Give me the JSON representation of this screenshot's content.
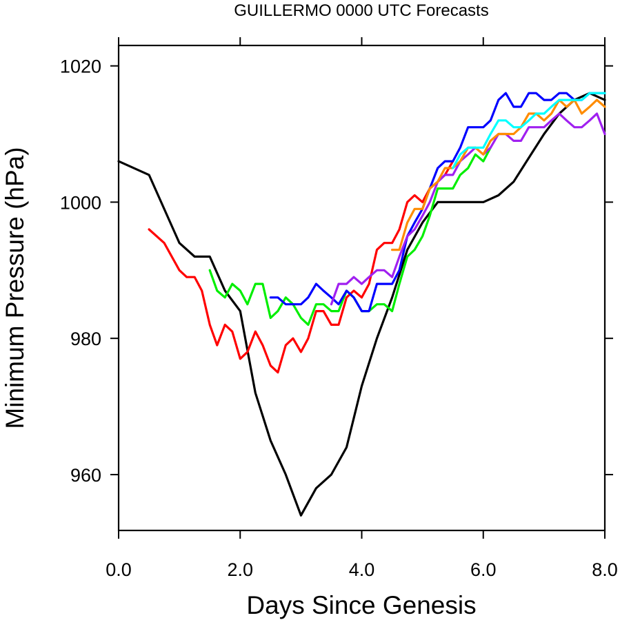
{
  "chart_data": {
    "type": "line",
    "title": "GUILLERMO 0000 UTC Forecasts",
    "xlabel": "Days Since Genesis",
    "ylabel": "Minimum Pressure (hPa)",
    "xlim": [
      0,
      8
    ],
    "ylim": [
      951.8,
      1023
    ],
    "x_ticks": [
      0,
      2,
      4,
      6,
      8
    ],
    "x_tick_labels": [
      "0.0",
      "2.0",
      "4.0",
      "6.0",
      "8.0"
    ],
    "y_ticks": [
      960,
      980,
      1000,
      1020
    ],
    "y_tick_labels": [
      "960",
      "980",
      "1000",
      "1020"
    ],
    "grid": false,
    "legend": "none",
    "series": [
      {
        "color": "#000000",
        "points": [
          [
            0,
            1006
          ],
          [
            0.5,
            1004
          ],
          [
            1,
            994
          ],
          [
            1.25,
            992
          ],
          [
            1.5,
            992
          ],
          [
            1.75,
            987
          ],
          [
            2,
            984
          ],
          [
            2.25,
            972
          ],
          [
            2.5,
            965
          ],
          [
            2.75,
            960
          ],
          [
            3,
            954
          ],
          [
            3.25,
            958
          ],
          [
            3.5,
            960
          ],
          [
            3.75,
            964
          ],
          [
            4,
            973
          ],
          [
            4.25,
            980
          ],
          [
            4.5,
            986
          ],
          [
            4.75,
            993
          ],
          [
            5,
            997
          ],
          [
            5.25,
            1000
          ],
          [
            5.5,
            1000
          ],
          [
            5.75,
            1000
          ],
          [
            6,
            1000
          ],
          [
            6.25,
            1001
          ],
          [
            6.5,
            1003
          ],
          [
            6.75,
            1006.5
          ],
          [
            7,
            1010
          ],
          [
            7.25,
            1013
          ],
          [
            7.5,
            1015
          ],
          [
            7.75,
            1016
          ],
          [
            8,
            1015
          ]
        ]
      },
      {
        "color": "#ff0000",
        "points": [
          [
            0.5,
            996
          ],
          [
            0.75,
            994
          ],
          [
            1,
            990
          ],
          [
            1.12,
            989
          ],
          [
            1.25,
            989
          ],
          [
            1.37,
            987
          ],
          [
            1.5,
            982
          ],
          [
            1.62,
            979
          ],
          [
            1.75,
            982
          ],
          [
            1.87,
            981
          ],
          [
            2,
            977
          ],
          [
            2.12,
            978
          ],
          [
            2.25,
            981
          ],
          [
            2.37,
            979
          ],
          [
            2.5,
            976
          ],
          [
            2.62,
            975
          ],
          [
            2.75,
            979
          ],
          [
            2.87,
            980
          ],
          [
            3,
            978
          ],
          [
            3.12,
            980
          ],
          [
            3.25,
            984
          ],
          [
            3.37,
            984
          ],
          [
            3.5,
            982
          ],
          [
            3.62,
            982
          ],
          [
            3.75,
            986
          ],
          [
            3.87,
            987
          ],
          [
            4,
            986
          ],
          [
            4.12,
            988
          ],
          [
            4.25,
            993
          ],
          [
            4.37,
            994
          ],
          [
            4.5,
            994
          ],
          [
            4.62,
            996
          ],
          [
            4.75,
            1000
          ],
          [
            4.87,
            1001
          ],
          [
            5,
            1000
          ],
          [
            5.12,
            1002
          ],
          [
            5.25,
            1003
          ],
          [
            5.37,
            1004
          ],
          [
            5.5,
            1006
          ]
        ]
      },
      {
        "color": "#00ee00",
        "points": [
          [
            1.5,
            990
          ],
          [
            1.62,
            987
          ],
          [
            1.75,
            986
          ],
          [
            1.87,
            988
          ],
          [
            2,
            987
          ],
          [
            2.12,
            985
          ],
          [
            2.25,
            988
          ],
          [
            2.37,
            988
          ],
          [
            2.5,
            983
          ],
          [
            2.62,
            984
          ],
          [
            2.75,
            986
          ],
          [
            2.87,
            985
          ],
          [
            3,
            983
          ],
          [
            3.12,
            982
          ],
          [
            3.25,
            985
          ],
          [
            3.37,
            985
          ],
          [
            3.5,
            984
          ],
          [
            3.62,
            984
          ],
          [
            3.75,
            987
          ],
          [
            3.87,
            986
          ],
          [
            4,
            984
          ],
          [
            4.12,
            984
          ],
          [
            4.25,
            985
          ],
          [
            4.37,
            985
          ],
          [
            4.5,
            984
          ],
          [
            4.62,
            988
          ],
          [
            4.75,
            992
          ],
          [
            4.87,
            993
          ],
          [
            5,
            995
          ],
          [
            5.12,
            998
          ],
          [
            5.25,
            1002
          ],
          [
            5.37,
            1002
          ],
          [
            5.5,
            1002
          ],
          [
            5.62,
            1004
          ],
          [
            5.75,
            1005
          ],
          [
            5.87,
            1007
          ],
          [
            6,
            1006
          ],
          [
            6.12,
            1008
          ]
        ]
      },
      {
        "color": "#0000ff",
        "points": [
          [
            2.5,
            986
          ],
          [
            2.62,
            986
          ],
          [
            2.75,
            985
          ],
          [
            2.87,
            985
          ],
          [
            3,
            985
          ],
          [
            3.12,
            986
          ],
          [
            3.25,
            988
          ],
          [
            3.37,
            987
          ],
          [
            3.5,
            986
          ],
          [
            3.62,
            985
          ],
          [
            3.75,
            987
          ],
          [
            3.87,
            986
          ],
          [
            4,
            984
          ],
          [
            4.12,
            984
          ],
          [
            4.25,
            988
          ],
          [
            4.37,
            988
          ],
          [
            4.5,
            988
          ],
          [
            4.62,
            990
          ],
          [
            4.75,
            995
          ],
          [
            4.87,
            997
          ],
          [
            5,
            999
          ],
          [
            5.12,
            1002
          ],
          [
            5.25,
            1005
          ],
          [
            5.37,
            1006
          ],
          [
            5.5,
            1006
          ],
          [
            5.62,
            1008
          ],
          [
            5.75,
            1011
          ],
          [
            5.87,
            1011
          ],
          [
            6,
            1011
          ],
          [
            6.12,
            1012
          ],
          [
            6.25,
            1015
          ],
          [
            6.37,
            1016
          ],
          [
            6.5,
            1014
          ],
          [
            6.62,
            1014
          ],
          [
            6.75,
            1016
          ],
          [
            6.87,
            1016
          ],
          [
            7,
            1015
          ],
          [
            7.12,
            1015
          ],
          [
            7.25,
            1016
          ],
          [
            7.37,
            1016
          ],
          [
            7.5,
            1015
          ],
          [
            7.62,
            1015
          ],
          [
            7.75,
            1016
          ],
          [
            8,
            1016
          ]
        ]
      },
      {
        "color": "#a020f0",
        "points": [
          [
            3.5,
            985
          ],
          [
            3.62,
            988
          ],
          [
            3.75,
            988
          ],
          [
            3.87,
            989
          ],
          [
            4,
            988
          ],
          [
            4.12,
            989
          ],
          [
            4.25,
            990
          ],
          [
            4.37,
            990
          ],
          [
            4.5,
            989
          ],
          [
            4.62,
            992
          ],
          [
            4.75,
            995
          ],
          [
            4.87,
            996
          ],
          [
            5,
            998
          ],
          [
            5.12,
            1000
          ],
          [
            5.25,
            1003
          ],
          [
            5.37,
            1004
          ],
          [
            5.5,
            1004
          ],
          [
            5.62,
            1006
          ],
          [
            5.75,
            1007
          ],
          [
            5.87,
            1008
          ],
          [
            6,
            1007
          ],
          [
            6.12,
            1008
          ],
          [
            6.25,
            1010
          ],
          [
            6.37,
            1010
          ],
          [
            6.5,
            1009
          ],
          [
            6.62,
            1009
          ],
          [
            6.75,
            1011
          ],
          [
            6.87,
            1011
          ],
          [
            7,
            1011
          ],
          [
            7.12,
            1012
          ],
          [
            7.25,
            1013
          ],
          [
            7.37,
            1012
          ],
          [
            7.5,
            1011
          ],
          [
            7.62,
            1011
          ],
          [
            7.75,
            1012
          ],
          [
            7.87,
            1013
          ],
          [
            8,
            1010
          ]
        ]
      },
      {
        "color": "#ff8c00",
        "points": [
          [
            4.5,
            993
          ],
          [
            4.62,
            993
          ],
          [
            4.75,
            997
          ],
          [
            4.87,
            999
          ],
          [
            5,
            999
          ],
          [
            5.12,
            1002
          ],
          [
            5.25,
            1003
          ],
          [
            5.37,
            1005
          ],
          [
            5.5,
            1005
          ],
          [
            5.62,
            1006
          ],
          [
            5.75,
            1008
          ],
          [
            5.87,
            1008
          ],
          [
            6,
            1007
          ],
          [
            6.12,
            1009
          ],
          [
            6.25,
            1010
          ],
          [
            6.37,
            1010
          ],
          [
            6.5,
            1010
          ],
          [
            6.62,
            1011
          ],
          [
            6.75,
            1013
          ],
          [
            6.87,
            1013
          ],
          [
            7,
            1012
          ],
          [
            7.12,
            1013
          ],
          [
            7.25,
            1015
          ],
          [
            7.37,
            1014
          ],
          [
            7.5,
            1015
          ],
          [
            7.62,
            1013
          ],
          [
            7.75,
            1014
          ],
          [
            7.87,
            1015
          ],
          [
            8,
            1014
          ]
        ]
      },
      {
        "color": "#00ffff",
        "points": [
          [
            5.5,
            1005
          ],
          [
            5.62,
            1007
          ],
          [
            5.75,
            1008
          ],
          [
            5.87,
            1008
          ],
          [
            6,
            1008
          ],
          [
            6.12,
            1010
          ],
          [
            6.25,
            1012
          ],
          [
            6.37,
            1012
          ],
          [
            6.5,
            1011
          ],
          [
            6.62,
            1011
          ],
          [
            6.75,
            1012
          ],
          [
            6.87,
            1013
          ],
          [
            7,
            1013
          ],
          [
            7.12,
            1014
          ],
          [
            7.25,
            1015
          ],
          [
            7.37,
            1015
          ],
          [
            7.5,
            1015
          ],
          [
            7.62,
            1015
          ],
          [
            7.75,
            1016
          ],
          [
            8,
            1016
          ]
        ]
      }
    ]
  }
}
